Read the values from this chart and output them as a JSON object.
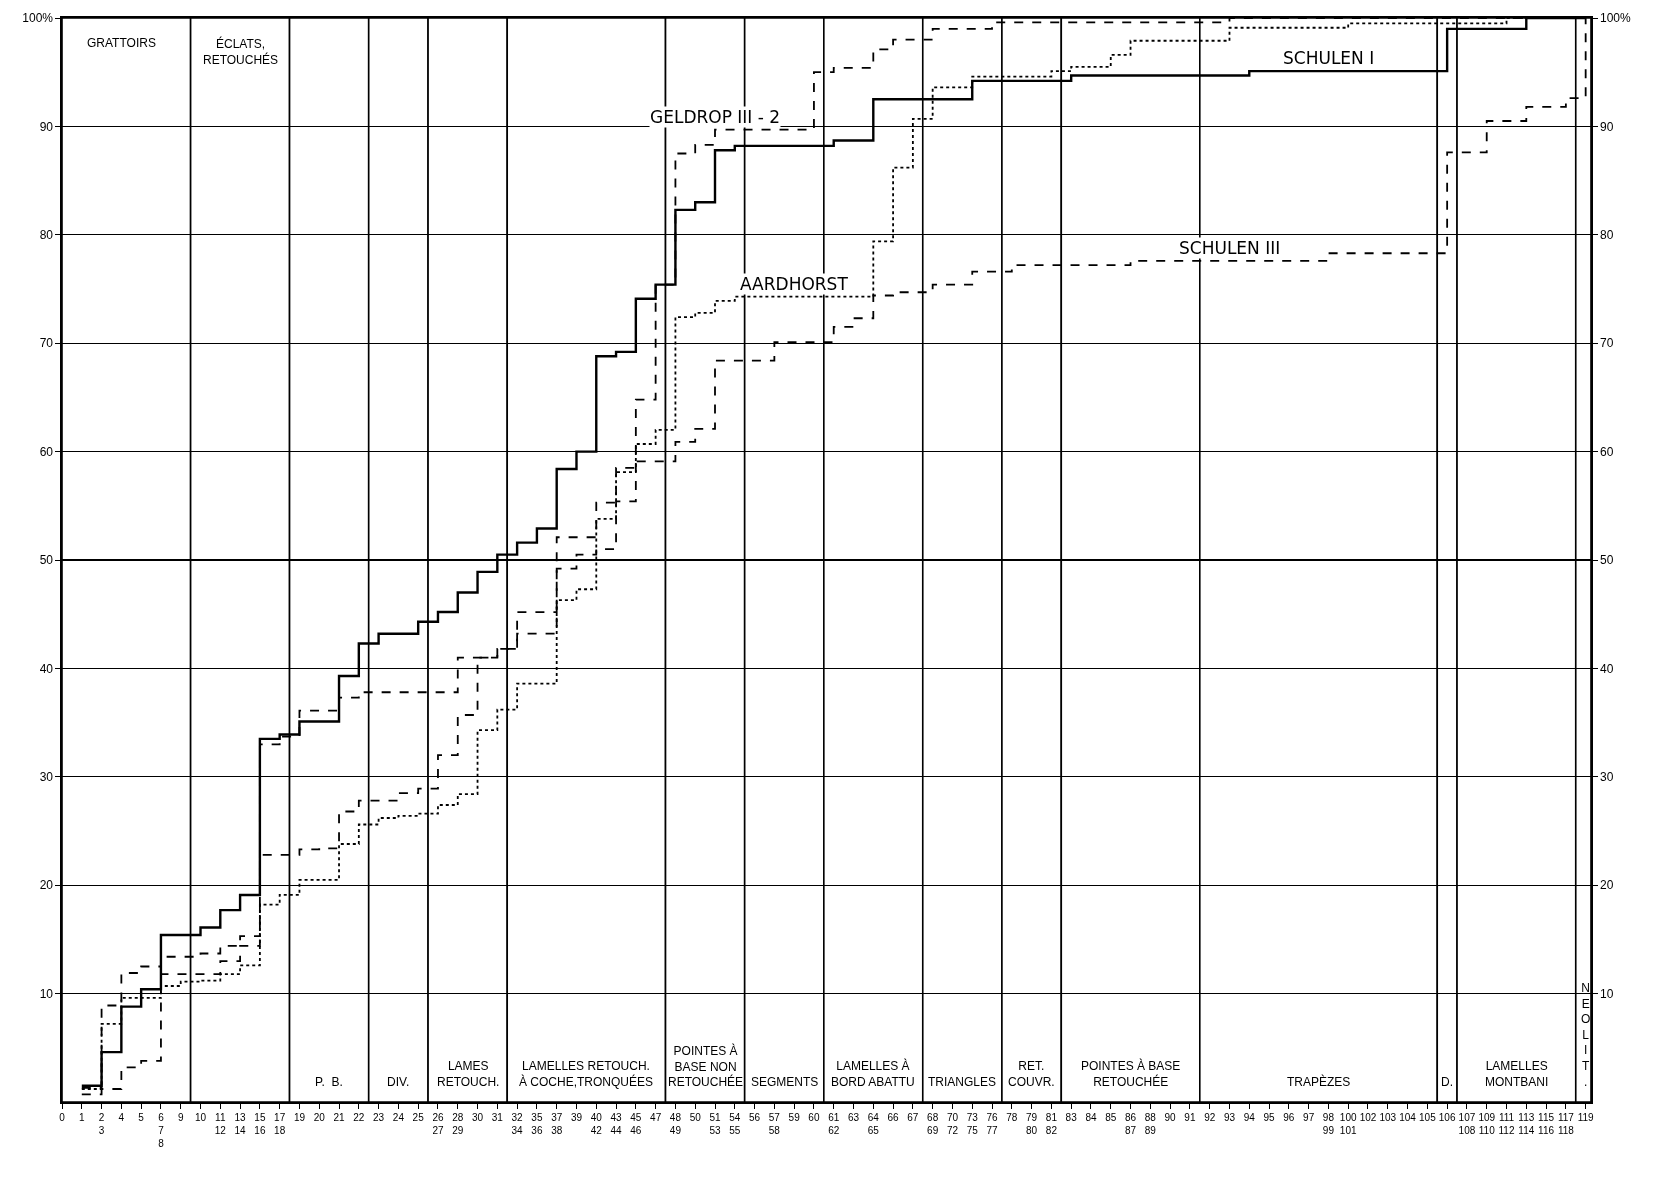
{
  "chart_data": {
    "type": "step",
    "categories": [
      "0",
      "1",
      "2\n3",
      "4",
      "5",
      "6\n7\n8",
      "9",
      "10",
      "11\n12",
      "13\n14",
      "15\n16",
      "17\n18",
      "19",
      "20",
      "21",
      "22",
      "23",
      "24",
      "25",
      "26\n27",
      "28\n29",
      "30",
      "31",
      "32\n34",
      "35\n36",
      "37\n38",
      "39",
      "40\n42",
      "43\n44",
      "45\n46",
      "47",
      "48\n49",
      "50",
      "51\n53",
      "54\n55",
      "56",
      "57\n58",
      "59",
      "60",
      "61\n62",
      "63",
      "64\n65",
      "66",
      "67",
      "68\n69",
      "70\n72",
      "73\n75",
      "76\n77",
      "78",
      "79\n80",
      "81\n82",
      "83",
      "84",
      "85",
      "86\n87",
      "88\n89",
      "90",
      "91",
      "92",
      "93",
      "94",
      "95",
      "96",
      "97",
      "98\n99",
      "100\n101",
      "102",
      "103",
      "104",
      "105",
      "106",
      "107\n108",
      "109\n110",
      "111\n112",
      "113\n114",
      "115\n116",
      "117\n118",
      "119"
    ],
    "series": [
      {
        "color": "#000000",
        "line_style": "solid",
        "values": [
          null,
          1.5,
          4.6,
          8.8,
          10.4,
          15.4,
          15.4,
          16.1,
          17.7,
          19.1,
          33.5,
          33.9,
          35.1,
          35.1,
          39.3,
          42.3,
          43.2,
          43.2,
          44.3,
          45.2,
          47.0,
          48.9,
          50.5,
          51.6,
          52.9,
          58.4,
          60.0,
          68.8,
          69.2,
          74.1,
          75.4,
          82.3,
          83.0,
          87.8,
          88.2,
          88.2,
          88.2,
          88.2,
          88.2,
          88.7,
          88.7,
          92.5,
          92.5,
          92.5,
          92.5,
          92.5,
          94.2,
          94.2,
          94.2,
          94.2,
          94.2,
          94.7,
          94.7,
          94.7,
          94.7,
          94.7,
          94.7,
          94.7,
          94.7,
          94.7,
          95.1,
          95.1,
          95.1,
          95.1,
          95.1,
          95.1,
          95.1,
          95.1,
          95.1,
          95.1,
          99.0,
          99.0,
          99.0,
          99.0,
          100,
          100,
          100,
          100
        ]
      },
      {
        "color": "#000000",
        "line_style": "dashed",
        "values": [
          null,
          1.3,
          8.9,
          11.9,
          12.5,
          13.4,
          13.4,
          13.7,
          14.4,
          15.3,
          22.8,
          22.8,
          23.3,
          23.4,
          26.8,
          27.8,
          27.8,
          28.5,
          28.9,
          32.0,
          35.7,
          41.0,
          41.8,
          43.2,
          43.2,
          49.2,
          50.5,
          51.0,
          55.4,
          64.8,
          75.4,
          87.5,
          88.3,
          89.7,
          89.7,
          89.7,
          89.7,
          89.7,
          95.0,
          95.4,
          95.4,
          97.1,
          98.0,
          98.0,
          99.0,
          99.0,
          99.0,
          99.6,
          99.6,
          99.6,
          99.6,
          99.6,
          99.6,
          99.6,
          99.6,
          99.6,
          99.6,
          99.6,
          99.6,
          100,
          100,
          100,
          100,
          100,
          100,
          100,
          100,
          100,
          100,
          100,
          100,
          100,
          100,
          100,
          100,
          100,
          100,
          100
        ]
      },
      {
        "color": "#000000",
        "line_style": "dotted",
        "values": [
          null,
          1.2,
          7.2,
          9.6,
          9.6,
          10.7,
          11.1,
          11.2,
          11.8,
          12.6,
          18.2,
          19.1,
          20.5,
          20.5,
          23.8,
          25.6,
          26.2,
          26.4,
          26.6,
          27.4,
          28.4,
          34.3,
          36.2,
          38.6,
          38.6,
          46.3,
          47.3,
          53.8,
          58.1,
          60.7,
          62.0,
          72.4,
          72.8,
          73.9,
          74.3,
          74.3,
          74.3,
          74.3,
          74.3,
          74.3,
          74.3,
          79.4,
          86.2,
          90.7,
          93.6,
          93.6,
          94.6,
          94.6,
          94.6,
          94.6,
          95.1,
          95.5,
          95.5,
          96.6,
          97.9,
          97.9,
          97.9,
          97.9,
          97.9,
          99.1,
          99.1,
          99.1,
          99.1,
          99.1,
          99.1,
          99.5,
          99.5,
          99.5,
          99.5,
          99.5,
          99.5,
          99.5,
          99.5,
          100,
          100,
          100,
          100,
          100
        ]
      },
      {
        "color": "#000000",
        "line_style": "dashed",
        "values": [
          null,
          0.7,
          1.2,
          3.2,
          3.8,
          11.8,
          11.8,
          11.8,
          13.0,
          14.4,
          33.0,
          33.7,
          36.1,
          36.1,
          37.3,
          37.8,
          37.8,
          37.8,
          37.8,
          37.8,
          41.0,
          41.0,
          41.8,
          45.2,
          45.2,
          52.1,
          52.1,
          55.3,
          58.5,
          59.1,
          59.1,
          60.9,
          62.1,
          68.4,
          68.4,
          68.4,
          70.1,
          70.1,
          70.1,
          71.5,
          72.3,
          74.4,
          74.7,
          74.7,
          75.4,
          75.4,
          76.6,
          76.6,
          77.2,
          77.2,
          77.2,
          77.2,
          77.2,
          77.2,
          77.6,
          77.6,
          77.6,
          77.6,
          77.6,
          77.6,
          77.6,
          77.6,
          77.6,
          77.6,
          78.3,
          78.3,
          78.3,
          78.3,
          78.3,
          78.3,
          87.6,
          87.6,
          90.5,
          90.5,
          91.8,
          91.8,
          92.6,
          100
        ]
      }
    ],
    "annotations": [
      {
        "text": "GELDROP III - 2",
        "x": "51\n53",
        "y": 89.7
      },
      {
        "text": "AARDHORST",
        "x": "59",
        "y": 74.3
      },
      {
        "text": "SCHULEN I",
        "x": "98\n99",
        "y": 95.1
      },
      {
        "text": "SCHULEN III",
        "x": "93",
        "y": 77.6
      }
    ],
    "bands": [
      {
        "axis": "x",
        "from": "0",
        "to": "9",
        "label": "GRATTOIRS"
      },
      {
        "axis": "x",
        "from": "10",
        "to": "17\n18",
        "label": "ÉCLATS,\nRETOUCHÉS"
      },
      {
        "axis": "x",
        "from": "19",
        "to": "22",
        "label": "P.  B."
      },
      {
        "axis": "x",
        "from": "23",
        "to": "25",
        "label": "DIV."
      },
      {
        "axis": "x",
        "from": "26\n27",
        "to": "31",
        "label": "LAMES\nRETOUCH."
      },
      {
        "axis": "x",
        "from": "32\n34",
        "to": "47",
        "label": "LAMELLES RETOUCH.\nÀ COCHE,TRONQUÉES"
      },
      {
        "axis": "x",
        "from": "48\n49",
        "to": "54\n55",
        "label": "POINTES À\nBASE NON\nRETOUCHÉE"
      },
      {
        "axis": "x",
        "from": "56",
        "to": "60",
        "label": "SEGMENTS"
      },
      {
        "axis": "x",
        "from": "61\n62",
        "to": "67",
        "label": "LAMELLES À\nBORD ABATTU"
      },
      {
        "axis": "x",
        "from": "68\n69",
        "to": "76\n77",
        "label": "TRIANGLES"
      },
      {
        "axis": "x",
        "from": "78",
        "to": "81\n82",
        "label": "RET.\nCOUVR."
      },
      {
        "axis": "x",
        "from": "83",
        "to": "91",
        "label": "POINTES À BASE\nRETOUCHÉE"
      },
      {
        "axis": "x",
        "from": "92",
        "to": "105",
        "label": "TRAPÈZES"
      },
      {
        "axis": "x",
        "from": "106",
        "to": "106",
        "label": "D."
      },
      {
        "axis": "x",
        "from": "107\n108",
        "to": "117\n118",
        "label": "LAMELLES\nMONTBANI"
      },
      {
        "axis": "x",
        "from": "119",
        "to": "119",
        "label": "NEOLIT."
      }
    ],
    "ylim": [
      0,
      100
    ],
    "yticks": [
      10,
      20,
      30,
      40,
      50,
      60,
      70,
      80,
      90,
      {
        "value": 100,
        "label": "100%"
      }
    ],
    "y2lim": [
      0,
      100
    ],
    "y2ticks": [
      10,
      20,
      30,
      40,
      50,
      60,
      70,
      80,
      90,
      {
        "value": 100,
        "label": "100%"
      }
    ],
    "grid": "y"
  }
}
